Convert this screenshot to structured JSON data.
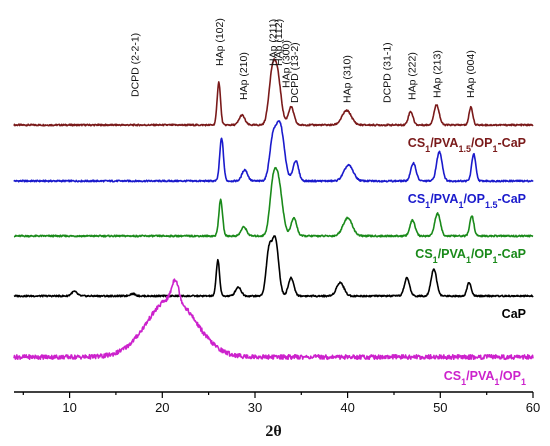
{
  "chart_data": {
    "type": "line",
    "xlabel": "2θ",
    "ylabel": "",
    "xlim": [
      4,
      60
    ],
    "xticks": [
      "10",
      "20",
      "30",
      "40",
      "50",
      "60"
    ],
    "legend": "none",
    "grid": false,
    "peak_labels": [
      {
        "text": "DCPD (2-2-1)",
        "x": 17.0
      },
      {
        "text": "HAp (102)",
        "x": 26.1
      },
      {
        "text": "HAp (210)",
        "x": 28.7
      },
      {
        "text": "HAp (211)",
        "x": 31.9
      },
      {
        "text": "HAp (112)",
        "x": 32.5
      },
      {
        "text": "HAp (300)",
        "x": 33.3
      },
      {
        "text": "DCPD (13-2)",
        "x": 34.2
      },
      {
        "text": "HAp (310)",
        "x": 39.9
      },
      {
        "text": "DCPD (31-1)",
        "x": 44.2
      },
      {
        "text": "HAp (222)",
        "x": 46.9
      },
      {
        "text": "HAp (213)",
        "x": 49.6
      },
      {
        "text": "HAp (004)",
        "x": 53.2
      }
    ],
    "series": [
      {
        "name": "CS1/PVA1.5/OP1-CaP",
        "color": "#7a1a1a",
        "label_parts": [
          {
            "t": "CS",
            "s": false
          },
          {
            "t": "1",
            "s": true
          },
          {
            "t": "/PVA",
            "s": false
          },
          {
            "t": "1.5",
            "s": true
          },
          {
            "t": "/OP",
            "s": false
          },
          {
            "t": "1",
            "s": true
          },
          {
            "t": "-CaP",
            "s": false
          }
        ],
        "peaks": [
          {
            "x": 26.1,
            "h": 0.95,
            "w": 0.18
          },
          {
            "x": 28.6,
            "h": 0.22,
            "w": 0.3
          },
          {
            "x": 31.8,
            "h": 0.9,
            "w": 0.35
          },
          {
            "x": 32.4,
            "h": 1.1,
            "w": 0.4
          },
          {
            "x": 33.9,
            "h": 0.4,
            "w": 0.3
          },
          {
            "x": 39.9,
            "h": 0.32,
            "w": 0.5
          },
          {
            "x": 46.8,
            "h": 0.3,
            "w": 0.25
          },
          {
            "x": 49.6,
            "h": 0.45,
            "w": 0.28
          },
          {
            "x": 53.3,
            "h": 0.4,
            "w": 0.2
          }
        ]
      },
      {
        "name": "CS1/PVA1/OP1.5-CaP",
        "color": "#1a1acc",
        "label_parts": [
          {
            "t": "CS",
            "s": false
          },
          {
            "t": "1",
            "s": true
          },
          {
            "t": "/PVA",
            "s": false
          },
          {
            "t": "1",
            "s": true
          },
          {
            "t": "/OP",
            "s": false
          },
          {
            "t": "1.5",
            "s": true
          },
          {
            "t": "-CaP",
            "s": false
          }
        ],
        "peaks": [
          {
            "x": 26.4,
            "h": 0.95,
            "w": 0.2
          },
          {
            "x": 28.9,
            "h": 0.25,
            "w": 0.3
          },
          {
            "x": 31.9,
            "h": 0.8,
            "w": 0.35
          },
          {
            "x": 32.7,
            "h": 1.25,
            "w": 0.45
          },
          {
            "x": 34.4,
            "h": 0.45,
            "w": 0.3
          },
          {
            "x": 40.1,
            "h": 0.35,
            "w": 0.5
          },
          {
            "x": 47.1,
            "h": 0.4,
            "w": 0.28
          },
          {
            "x": 49.9,
            "h": 0.65,
            "w": 0.3
          },
          {
            "x": 53.6,
            "h": 0.6,
            "w": 0.22
          }
        ]
      },
      {
        "name": "CS1/PVA1/OP1-CaP",
        "color": "#1a8a1a",
        "label_parts": [
          {
            "t": "CS",
            "s": false
          },
          {
            "t": "1",
            "s": true
          },
          {
            "t": "/PVA",
            "s": false
          },
          {
            "t": "1",
            "s": true
          },
          {
            "t": "/OP",
            "s": false
          },
          {
            "t": "1",
            "s": true
          },
          {
            "t": "-CaP",
            "s": false
          }
        ],
        "peaks": [
          {
            "x": 26.3,
            "h": 0.8,
            "w": 0.2
          },
          {
            "x": 28.8,
            "h": 0.2,
            "w": 0.3
          },
          {
            "x": 31.9,
            "h": 0.8,
            "w": 0.35
          },
          {
            "x": 32.5,
            "h": 1.2,
            "w": 0.45
          },
          {
            "x": 34.2,
            "h": 0.4,
            "w": 0.3
          },
          {
            "x": 40.0,
            "h": 0.4,
            "w": 0.5
          },
          {
            "x": 47.0,
            "h": 0.35,
            "w": 0.28
          },
          {
            "x": 49.7,
            "h": 0.5,
            "w": 0.3
          },
          {
            "x": 53.4,
            "h": 0.45,
            "w": 0.22
          }
        ]
      },
      {
        "name": "CaP",
        "color": "#000000",
        "label_parts": [
          {
            "t": "CaP",
            "s": false
          }
        ],
        "peaks": [
          {
            "x": 10.5,
            "h": 0.1,
            "w": 0.3
          },
          {
            "x": 16.8,
            "h": 0.05,
            "w": 0.3
          },
          {
            "x": 26.0,
            "h": 0.8,
            "w": 0.18
          },
          {
            "x": 28.2,
            "h": 0.2,
            "w": 0.3
          },
          {
            "x": 31.5,
            "h": 0.95,
            "w": 0.3
          },
          {
            "x": 32.2,
            "h": 1.25,
            "w": 0.35
          },
          {
            "x": 33.9,
            "h": 0.4,
            "w": 0.3
          },
          {
            "x": 39.2,
            "h": 0.3,
            "w": 0.4
          },
          {
            "x": 46.4,
            "h": 0.4,
            "w": 0.28
          },
          {
            "x": 49.3,
            "h": 0.6,
            "w": 0.3
          },
          {
            "x": 53.1,
            "h": 0.3,
            "w": 0.22
          }
        ]
      },
      {
        "name": "CS1/PVA1/OP1",
        "color": "#cc22cc",
        "label_parts": [
          {
            "t": "CS",
            "s": false
          },
          {
            "t": "1",
            "s": true
          },
          {
            "t": "/PVA",
            "s": false
          },
          {
            "t": "1",
            "s": true
          },
          {
            "t": "/OP",
            "s": false
          },
          {
            "t": "1",
            "s": true
          }
        ],
        "peaks": [
          {
            "x": 21.0,
            "h": 1.3,
            "w": 2.6
          },
          {
            "x": 21.4,
            "h": 0.45,
            "w": 0.35
          }
        ]
      }
    ]
  }
}
